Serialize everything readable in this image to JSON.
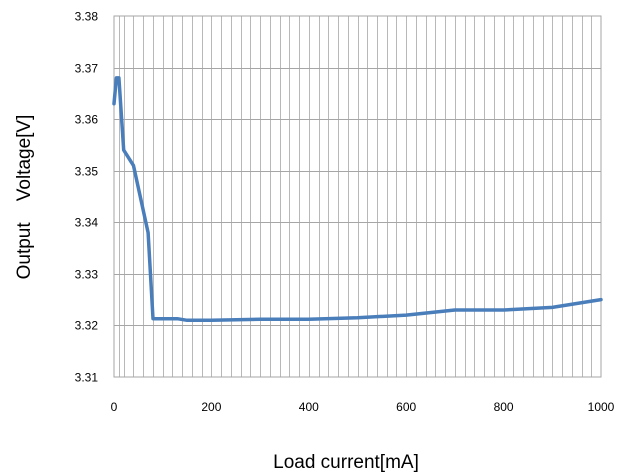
{
  "chart_data": {
    "type": "line",
    "title": "",
    "xlabel": "Load current[mA]",
    "ylabel": "Output    Voltage[V]",
    "xlim": [
      0,
      1000
    ],
    "ylim": [
      3.31,
      3.38
    ],
    "x_ticks": [
      "0",
      "200",
      "400",
      "600",
      "800",
      "1000"
    ],
    "y_ticks": [
      "3.31",
      "3.32",
      "3.33",
      "3.34",
      "3.35",
      "3.36",
      "3.37",
      "3.38"
    ],
    "grid": true,
    "legend": "none",
    "line_color": "#4a7ebb",
    "series": [
      {
        "x": [
          0,
          5,
          10,
          20,
          40,
          70,
          80,
          130,
          150,
          200,
          300,
          400,
          500,
          600,
          700,
          800,
          900,
          1000
        ],
        "values": [
          3.363,
          3.368,
          3.368,
          3.354,
          3.351,
          3.338,
          3.3213,
          3.3213,
          3.321,
          3.321,
          3.3212,
          3.3212,
          3.3215,
          3.322,
          3.323,
          3.323,
          3.3235,
          3.325
        ]
      }
    ]
  }
}
